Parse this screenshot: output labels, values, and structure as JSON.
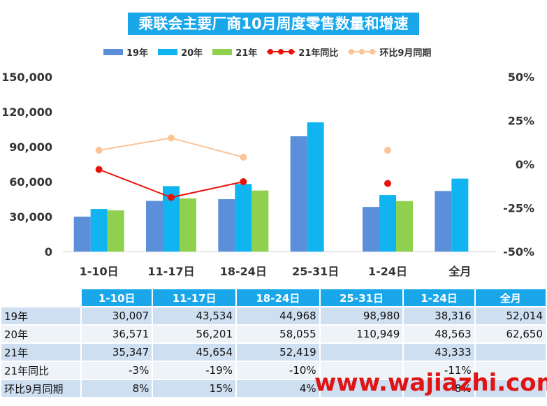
{
  "title": "乘联会主要厂商10月周度零售数量和增速",
  "watermark": "www.wajiazhi.com",
  "colors": {
    "title_bg": "#1aa7ea",
    "s19": "#5b8fd9",
    "s20": "#10b4f0",
    "s21": "#8fd14f",
    "yoy": "#e8140c",
    "mom": "#fbc497",
    "header_bg": "#1aa7ea",
    "row_odd": "#cfdff2",
    "row_even": "#eef3f8"
  },
  "chart_data": {
    "type": "bar",
    "categories": [
      "1-10日",
      "11-17日",
      "18-24日",
      "25-31日",
      "1-24日",
      "全月"
    ],
    "series": [
      {
        "name": "19年",
        "kind": "bar",
        "axis": "left",
        "color": "#5b8fd9",
        "values": [
          30007,
          43534,
          44968,
          98980,
          38316,
          52014
        ]
      },
      {
        "name": "20年",
        "kind": "bar",
        "axis": "left",
        "color": "#10b4f0",
        "values": [
          36571,
          56201,
          58055,
          110949,
          48563,
          62650
        ]
      },
      {
        "name": "21年",
        "kind": "bar",
        "axis": "left",
        "color": "#8fd14f",
        "values": [
          35347,
          45654,
          52419,
          null,
          43333,
          null
        ]
      },
      {
        "name": "21年同比",
        "kind": "line",
        "axis": "right",
        "color": "#e8140c",
        "values": [
          -3,
          -19,
          -10,
          null,
          -11,
          null
        ]
      },
      {
        "name": "环比9月同期",
        "kind": "line",
        "axis": "right",
        "color": "#fbc497",
        "values": [
          8,
          15,
          4,
          null,
          8,
          null
        ]
      }
    ],
    "y_left": {
      "ticks": [
        "0",
        "30,000",
        "60,000",
        "90,000",
        "120,000",
        "150,000"
      ],
      "lim": [
        0,
        150000
      ]
    },
    "y_right": {
      "ticks": [
        "-50%",
        "-25%",
        "0%",
        "25%",
        "50%"
      ],
      "lim": [
        -50,
        50
      ]
    },
    "legend_position": "top",
    "grid": false
  },
  "table": {
    "headers": [
      "1-10日",
      "11-17日",
      "18-24日",
      "25-31日",
      "1-24日",
      "全月"
    ],
    "rows": [
      {
        "label": "19年",
        "cells": [
          "30,007",
          "43,534",
          "44,968",
          "98,980",
          "38,316",
          "52,014"
        ]
      },
      {
        "label": "20年",
        "cells": [
          "36,571",
          "56,201",
          "58,055",
          "110,949",
          "48,563",
          "62,650"
        ]
      },
      {
        "label": "21年",
        "cells": [
          "35,347",
          "45,654",
          "52,419",
          "",
          "43,333",
          ""
        ]
      },
      {
        "label": "21年同比",
        "cells": [
          "-3%",
          "-19%",
          "-10%",
          "",
          "-11%",
          ""
        ]
      },
      {
        "label": "环比9月同期",
        "cells": [
          "8%",
          "15%",
          "4%",
          "",
          "8%",
          ""
        ]
      }
    ]
  }
}
